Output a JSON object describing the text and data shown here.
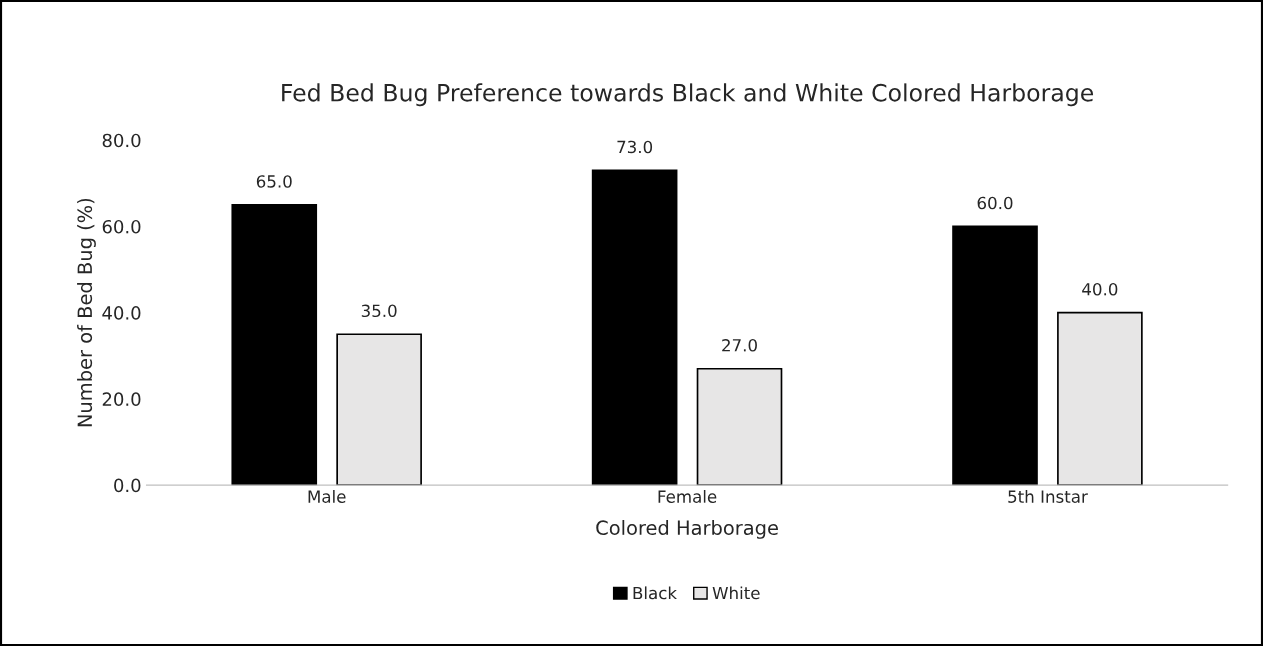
{
  "chart_data": {
    "type": "bar",
    "title": "Fed Bed Bug Preference towards Black and White Colored Harborage",
    "xlabel": "Colored Harborage",
    "ylabel": "Number of Bed Bug (%)",
    "categories": [
      "Male",
      "Female",
      "5th Instar"
    ],
    "series": [
      {
        "name": "Black",
        "color": "#000000",
        "values": [
          65.0,
          73.0,
          60.0
        ],
        "value_labels": [
          "65.0",
          "73.0",
          "60.0"
        ]
      },
      {
        "name": "White",
        "color": "#e7e6e6",
        "values": [
          35.0,
          27.0,
          40.0
        ],
        "value_labels": [
          "35.0",
          "27.0",
          "40.0"
        ]
      }
    ],
    "ylim": [
      0,
      80
    ],
    "yticks": [
      {
        "value": 0,
        "label": "0.0"
      },
      {
        "value": 20,
        "label": "20.0"
      },
      {
        "value": 40,
        "label": "40.0"
      },
      {
        "value": 60,
        "label": "60.0"
      },
      {
        "value": 80,
        "label": "80.0"
      }
    ],
    "grid": false,
    "legend": "bottom"
  }
}
